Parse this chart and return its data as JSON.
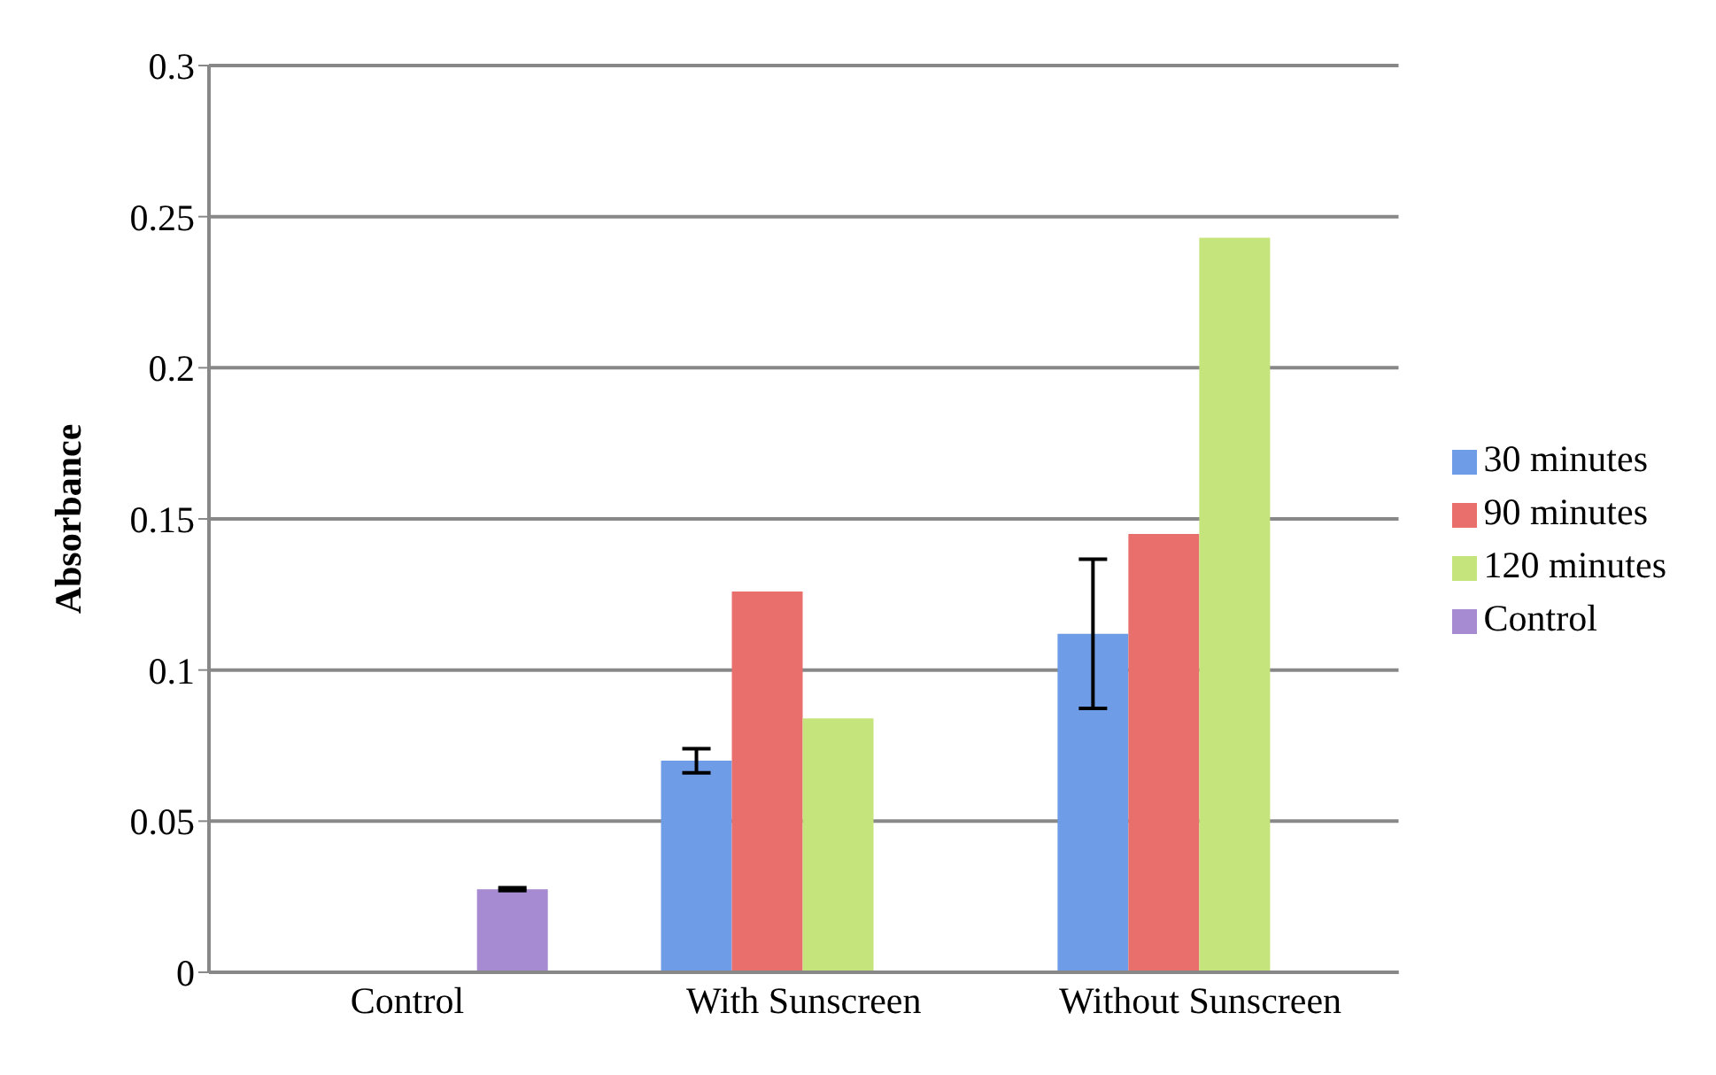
{
  "chart_data": {
    "type": "bar",
    "ylabel": "Absorbance",
    "categories": [
      "Control",
      "With Sunscreen",
      "Without Sunscreen"
    ],
    "series": [
      {
        "name": "30 minutes",
        "color": "#6f9ce6",
        "values": [
          null,
          0.07,
          0.112
        ],
        "errors": [
          null,
          0.004,
          0.0247
        ]
      },
      {
        "name": "90 minutes",
        "color": "#e86f6c",
        "values": [
          null,
          0.126,
          0.145
        ]
      },
      {
        "name": "120 minutes",
        "color": "#c6e47c",
        "values": [
          null,
          0.084,
          0.243
        ]
      },
      {
        "name": "Control",
        "color": "#a78bd2",
        "values": [
          0.0275,
          null,
          null
        ],
        "errors": [
          0.0005,
          null,
          null
        ]
      }
    ],
    "ylim": [
      0,
      0.3
    ],
    "yticks": [
      0,
      0.05,
      0.1,
      0.15,
      0.2,
      0.25,
      0.3
    ],
    "grid": "y",
    "legend": "right"
  }
}
